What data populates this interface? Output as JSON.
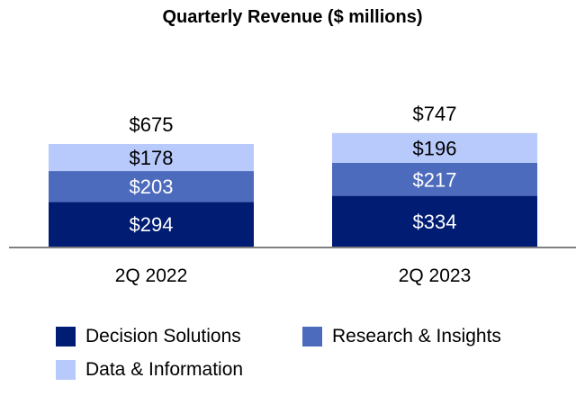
{
  "chart_data": {
    "type": "bar",
    "stacked": true,
    "title": "Quarterly Revenue ($ millions)",
    "categories": [
      "2Q 2022",
      "2Q 2023"
    ],
    "series": [
      {
        "name": "Decision Solutions",
        "values": [
          294,
          334
        ],
        "color": "#001c73",
        "label_color": "#ffffff"
      },
      {
        "name": "Research & Insights",
        "values": [
          203,
          217
        ],
        "color": "#4d6bbd",
        "label_color": "#ffffff"
      },
      {
        "name": "Data & Information",
        "values": [
          178,
          196
        ],
        "color": "#b8c9fb",
        "label_color": "#000000"
      }
    ],
    "totals": [
      675,
      747
    ],
    "value_prefix": "$",
    "legend_position": "bottom",
    "grid": false,
    "axis_color": "#808080"
  }
}
